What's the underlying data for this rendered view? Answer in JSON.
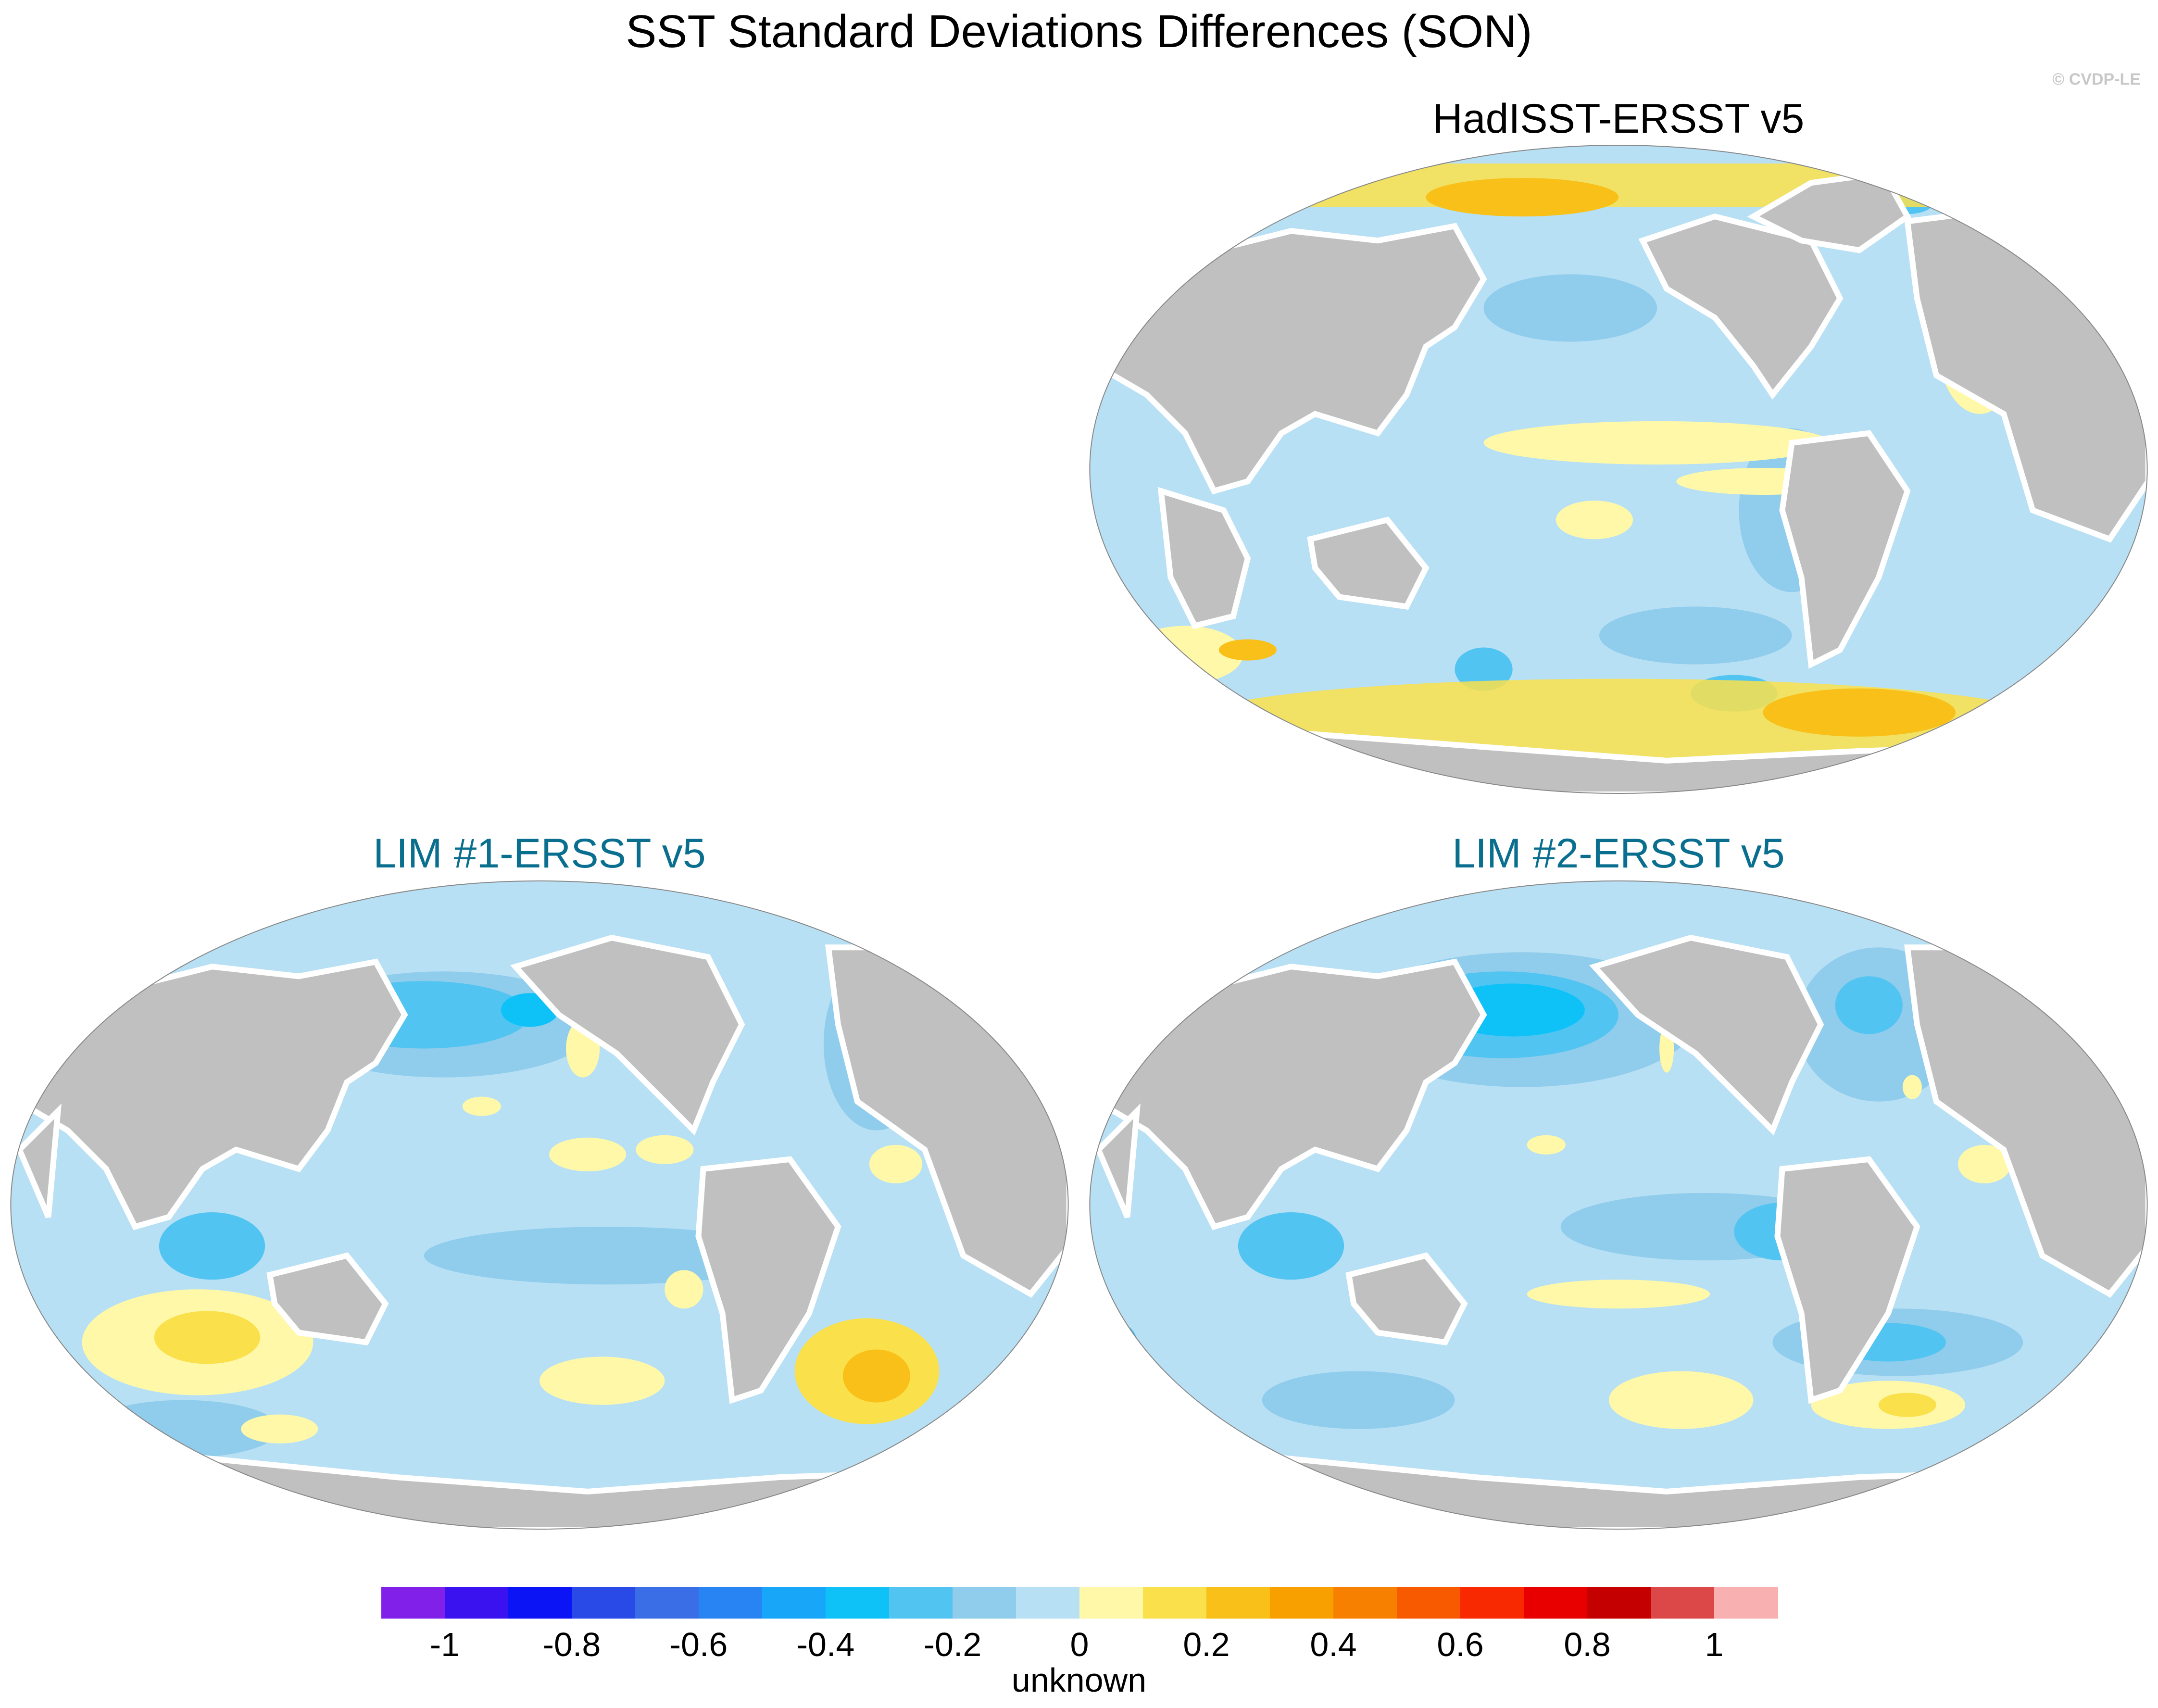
{
  "figure": {
    "title": "SST Standard Deviations Differences (SON)",
    "credit": "© CVDP-LE"
  },
  "panels": [
    {
      "id": "hadisst",
      "title": "HadISST-ERSST v5",
      "title_color": "#000000"
    },
    {
      "id": "lim1",
      "title": "LIM #1-ERSST v5",
      "title_color": "#0a6f8f"
    },
    {
      "id": "lim2",
      "title": "LIM #2-ERSST v5",
      "title_color": "#0a6f8f"
    }
  ],
  "colorbar": {
    "label": "unknown",
    "colors": [
      "#8020e8",
      "#3a12f0",
      "#0a14f5",
      "#2a4ae8",
      "#3a6ee6",
      "#2884f2",
      "#18a6f8",
      "#0ec2f8",
      "#52c4f2",
      "#90ccec",
      "#b8e0f4",
      "#fff8a8",
      "#fae04a",
      "#f8c018",
      "#f8a000",
      "#f88000",
      "#f85a00",
      "#f82800",
      "#e80000",
      "#c40000",
      "#dc4848",
      "#f8b0b0"
    ],
    "ticks": [
      "-1",
      "-0.8",
      "-0.6",
      "-0.4",
      "-0.2",
      "0",
      "0.2",
      "0.4",
      "0.6",
      "0.8",
      "1"
    ],
    "min": -1.1,
    "max": 1.1,
    "tick_values": [
      -1,
      -0.8,
      -0.6,
      -0.4,
      -0.2,
      0,
      0.2,
      0.4,
      0.6,
      0.8,
      1
    ]
  },
  "palette": {
    "ocean_base": "#b8e0f4",
    "land": "#c0c0c0",
    "coast_gap": "#ffffff",
    "neg_light": "#90ccec",
    "neg_mid": "#52c4f2",
    "neg_strong": "#0ec2f8",
    "pos_light": "#fff8a8",
    "pos_mid": "#fae04a",
    "pos_strong": "#f8c018"
  }
}
